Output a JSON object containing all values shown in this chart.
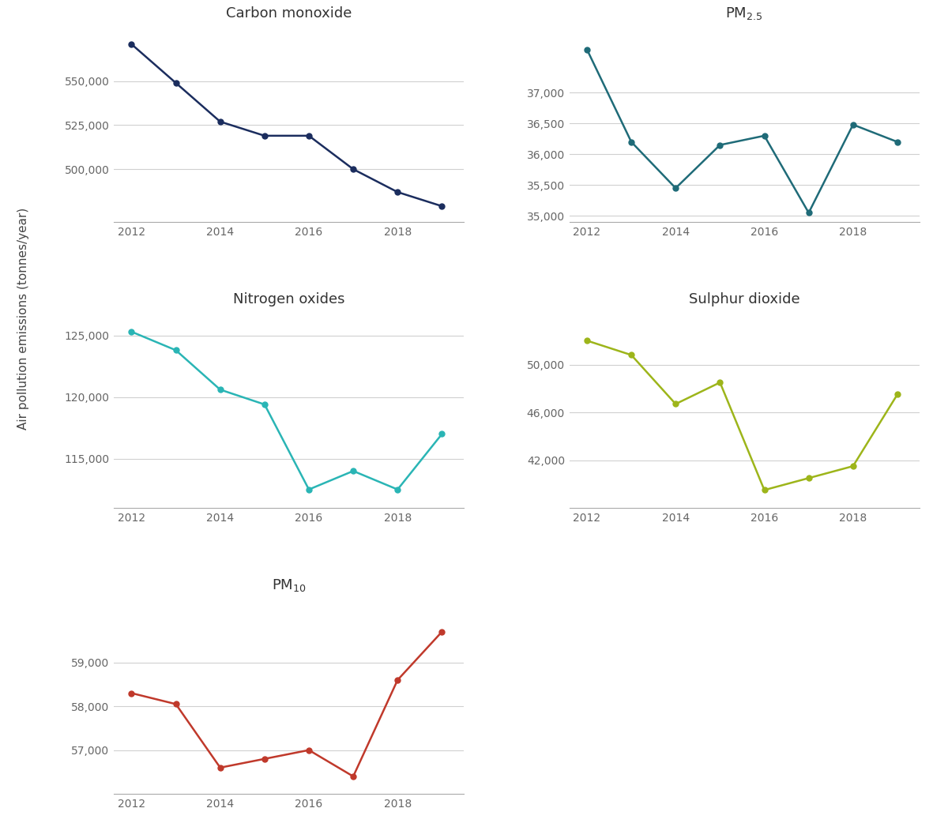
{
  "years": [
    2012,
    2013,
    2014,
    2015,
    2016,
    2017,
    2018,
    2019
  ],
  "carbon_monoxide": {
    "title": "Carbon monoxide",
    "values": [
      571000,
      549000,
      527000,
      519000,
      519000,
      500000,
      487000,
      479000
    ],
    "color": "#1b2d5e",
    "yticks": [
      500000,
      525000,
      550000
    ],
    "ylim": [
      470000,
      582000
    ]
  },
  "pm25": {
    "title": "PM$_{2.5}$",
    "values": [
      37700,
      36200,
      35450,
      36150,
      36300,
      35050,
      36480,
      36200
    ],
    "color": "#1f6b78",
    "yticks": [
      35000,
      35500,
      36000,
      36500,
      37000
    ],
    "ylim": [
      34900,
      38100
    ]
  },
  "nitrogen_oxides": {
    "title": "Nitrogen oxides",
    "values": [
      125300,
      123800,
      120600,
      119400,
      112500,
      114000,
      112500,
      117000
    ],
    "color": "#2ab5b5",
    "yticks": [
      115000,
      120000,
      125000
    ],
    "ylim": [
      111000,
      127000
    ]
  },
  "sulphur_dioxide": {
    "title": "Sulphur dioxide",
    "values": [
      52000,
      50800,
      46700,
      48500,
      39500,
      40500,
      41500,
      47500
    ],
    "color": "#9db51a",
    "yticks": [
      42000,
      46000,
      50000
    ],
    "ylim": [
      38000,
      54500
    ]
  },
  "pm10": {
    "title": "PM$_{10}$",
    "values": [
      58300,
      58050,
      56600,
      56800,
      57000,
      56400,
      58600,
      59700
    ],
    "color": "#c0392b",
    "yticks": [
      57000,
      58000,
      59000
    ],
    "ylim": [
      56000,
      60500
    ]
  },
  "ylabel": "Air pollution emissions (tonnes/year)",
  "background_color": "#ffffff",
  "grid_color": "#d0d0d0",
  "tick_label_color": "#666666",
  "title_fontsize": 13,
  "tick_fontsize": 10,
  "ylabel_fontsize": 11,
  "marker_size": 5,
  "line_width": 1.8
}
